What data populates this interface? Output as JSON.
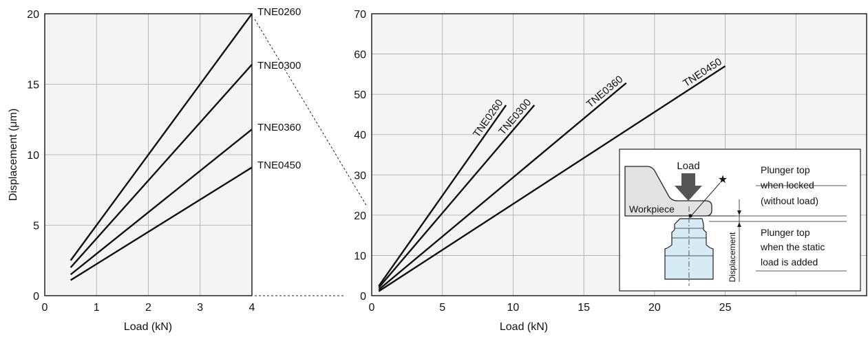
{
  "chart_data": [
    {
      "type": "line",
      "xlabel": "Load (kN)",
      "ylabel": "Displacement (μm)",
      "xlim": [
        0,
        4
      ],
      "ylim": [
        0,
        20
      ],
      "xticks": [
        0,
        1,
        2,
        3,
        4
      ],
      "yticks": [
        0,
        5,
        10,
        15,
        20
      ],
      "grid": true,
      "series": [
        {
          "name": "TNE0260",
          "x": [
            0.5,
            4
          ],
          "y": [
            2.5,
            20.0
          ]
        },
        {
          "name": "TNE0300",
          "x": [
            0.5,
            4
          ],
          "y": [
            2.0,
            16.4
          ]
        },
        {
          "name": "TNE0360",
          "x": [
            0.5,
            4
          ],
          "y": [
            1.5,
            11.8
          ]
        },
        {
          "name": "TNE0450",
          "x": [
            0.5,
            4
          ],
          "y": [
            1.1,
            9.1
          ]
        }
      ]
    },
    {
      "type": "line",
      "xlabel": "Load (kN)",
      "ylabel": "",
      "xlim": [
        0,
        35
      ],
      "ylim": [
        0,
        70
      ],
      "xticks": [
        0,
        5,
        10,
        15,
        20,
        25
      ],
      "yticks": [
        0,
        10,
        20,
        30,
        40,
        50,
        60,
        70
      ],
      "grid": true,
      "series": [
        {
          "name": "TNE0260",
          "x": [
            0.5,
            9.5
          ],
          "y": [
            2.4,
            47.3
          ]
        },
        {
          "name": "TNE0300",
          "x": [
            0.5,
            11.5
          ],
          "y": [
            2.0,
            47.3
          ]
        },
        {
          "name": "TNE0360",
          "x": [
            0.5,
            18
          ],
          "y": [
            1.5,
            52.8
          ]
        },
        {
          "name": "TNE0450",
          "x": [
            0.5,
            25
          ],
          "y": [
            1.1,
            57.0
          ]
        }
      ]
    }
  ],
  "inset": {
    "load_label": "Load",
    "workpiece_label": "Workpiece",
    "star": "★",
    "locked_label_1": "Plunger top",
    "locked_label_2": "when locked",
    "locked_label_3": "(without load)",
    "static_label_1": "Plunger top",
    "static_label_2": "when the static",
    "static_label_3": "load is added",
    "displacement_label": "Displacement"
  }
}
